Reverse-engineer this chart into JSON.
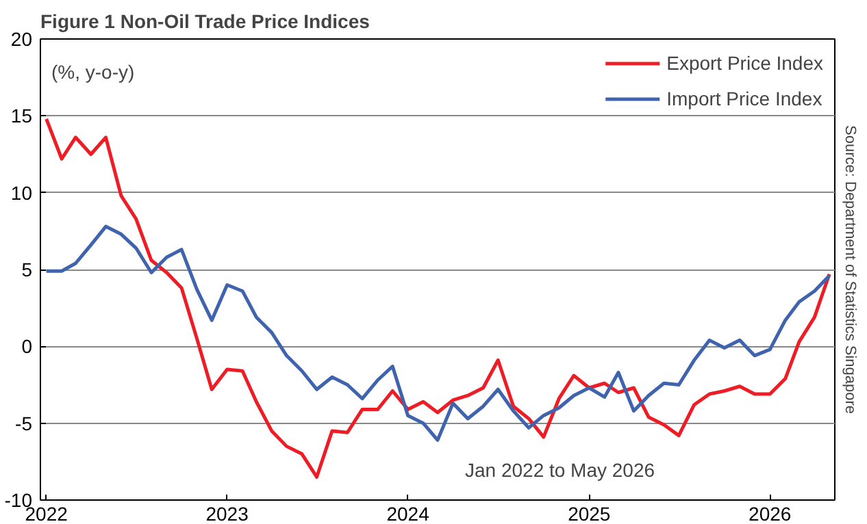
{
  "chart_data": {
    "type": "line",
    "title": "Figure 1  Non-Oil Trade Price Indices",
    "ylabel": "(%, y-o-y)",
    "annotations": [
      "Jan 2022 to May 2026",
      "Source: Department of Statistics Singapore"
    ],
    "x": [
      "2022-01",
      "2022-02",
      "2022-03",
      "2022-04",
      "2022-05",
      "2022-06",
      "2022-07",
      "2022-08",
      "2022-09",
      "2022-10",
      "2022-11",
      "2022-12",
      "2023-01",
      "2023-02",
      "2023-03",
      "2023-04",
      "2023-05",
      "2023-06",
      "2023-07",
      "2023-08",
      "2023-09",
      "2023-10",
      "2023-11",
      "2023-12",
      "2024-01",
      "2024-02",
      "2024-03",
      "2024-04",
      "2024-05",
      "2024-06",
      "2024-07",
      "2024-08",
      "2024-09",
      "2024-10",
      "2024-11",
      "2024-12",
      "2025-01",
      "2025-02",
      "2025-03",
      "2025-04",
      "2025-05",
      "2025-06",
      "2025-07",
      "2025-08",
      "2025-09",
      "2025-10",
      "2025-11",
      "2025-12",
      "2026-01",
      "2026-02",
      "2026-03",
      "2026-04",
      "2026-05"
    ],
    "series": [
      {
        "name": "Export Price Index",
        "color": "#ee1c25",
        "values": [
          14.8,
          12.2,
          13.6,
          12.5,
          13.6,
          9.8,
          8.3,
          5.6,
          4.8,
          3.8,
          0.5,
          -2.8,
          -1.5,
          -1.6,
          -3.6,
          -5.5,
          -6.5,
          -7.0,
          -8.5,
          -5.5,
          -5.6,
          -4.1,
          -4.1,
          -2.9,
          -4.1,
          -3.6,
          -4.3,
          -3.5,
          -3.2,
          -2.7,
          -0.9,
          -3.9,
          -4.7,
          -5.9,
          -3.4,
          -1.9,
          -2.7,
          -2.4,
          -3.0,
          -2.7,
          -4.6,
          -5.1,
          -5.8,
          -3.8,
          -3.1,
          -2.9,
          -2.6,
          -3.1,
          -3.1,
          -2.1,
          0.3,
          1.9,
          4.7
        ]
      },
      {
        "name": "Import Price Index",
        "color": "#3f63ad",
        "values": [
          4.9,
          4.9,
          5.4,
          6.6,
          7.8,
          7.3,
          6.4,
          4.8,
          5.8,
          6.3,
          3.7,
          1.7,
          4.0,
          3.6,
          1.9,
          0.9,
          -0.6,
          -1.6,
          -2.8,
          -2.0,
          -2.5,
          -3.4,
          -2.2,
          -1.3,
          -4.5,
          -5.0,
          -6.1,
          -3.7,
          -4.7,
          -3.9,
          -2.8,
          -4.2,
          -5.3,
          -4.5,
          -4.0,
          -3.2,
          -2.7,
          -3.3,
          -1.7,
          -4.2,
          -3.2,
          -2.4,
          -2.5,
          -0.9,
          0.4,
          -0.1,
          0.4,
          -0.6,
          -0.2,
          1.7,
          2.9,
          3.6,
          4.6
        ]
      }
    ],
    "xlim": [
      "2021-12-20",
      "2026-05-12"
    ],
    "xticks": [
      "2022",
      "2023",
      "2024",
      "2025",
      "2026"
    ],
    "ylim": [
      -10,
      20
    ],
    "yticks": [
      -10,
      -5,
      0,
      5,
      10,
      15,
      20
    ],
    "grid": "y",
    "legend": "top right",
    "marker": "none",
    "line_style": "solid"
  }
}
